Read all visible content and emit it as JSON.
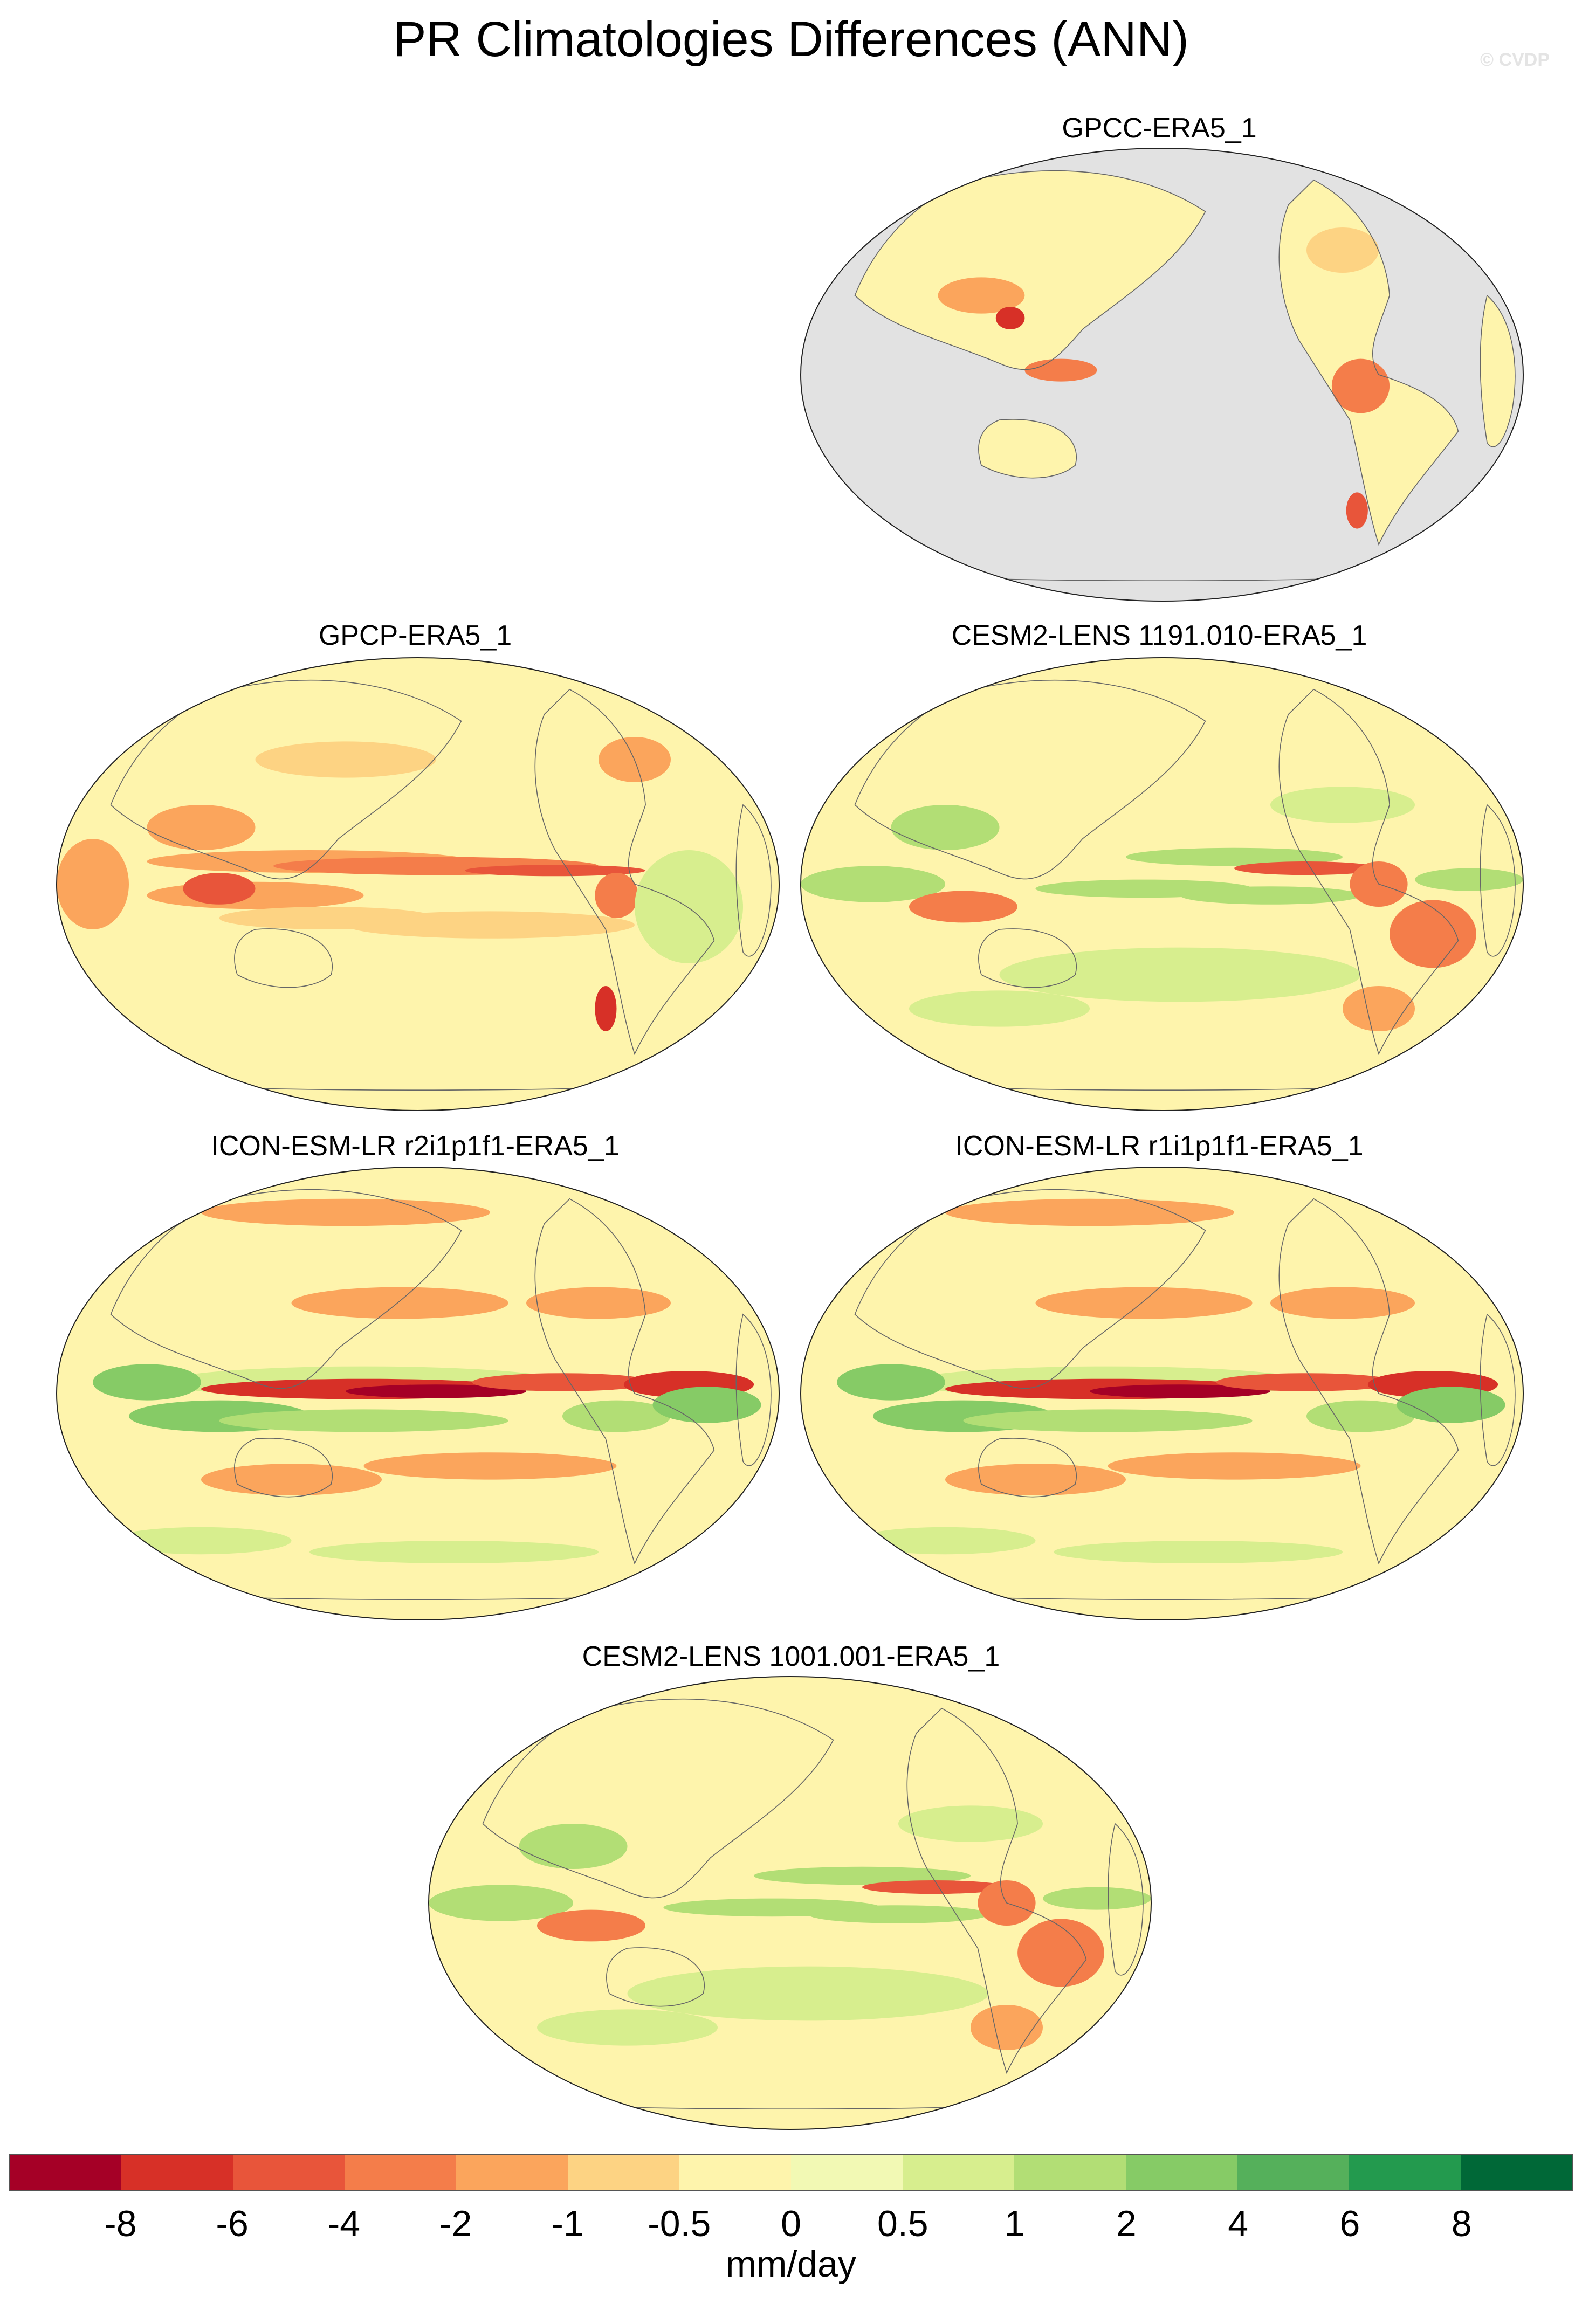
{
  "title": "PR Climatologies Differences (ANN)",
  "credit": "© CVDP",
  "panels": [
    {
      "label": "GPCC-ERA5_1",
      "style": "land-only"
    },
    {
      "label": "GPCP-ERA5_1",
      "style": "obs"
    },
    {
      "label": "CESM2-LENS 1191.010-ERA5_1",
      "style": "cesm"
    },
    {
      "label": "ICON-ESM-LR r2i1p1f1-ERA5_1",
      "style": "icon"
    },
    {
      "label": "ICON-ESM-LR r1i1p1f1-ERA5_1",
      "style": "icon"
    },
    {
      "label": "CESM2-LENS 1001.001-ERA5_1",
      "style": "cesm"
    }
  ],
  "colorbar": {
    "colors": [
      "#a50026",
      "#d73027",
      "#e8553a",
      "#f47d4a",
      "#fba55c",
      "#fdd383",
      "#fef4ac",
      "#f2f9b4",
      "#d7ee8e",
      "#b2de75",
      "#86cb66",
      "#55b05b",
      "#239a4e",
      "#006837"
    ],
    "ticks": [
      "-8",
      "-6",
      "-4",
      "-2",
      "-1",
      "-0.5",
      "0",
      "0.5",
      "1",
      "2",
      "4",
      "6",
      "8"
    ],
    "units": "mm/day"
  }
}
